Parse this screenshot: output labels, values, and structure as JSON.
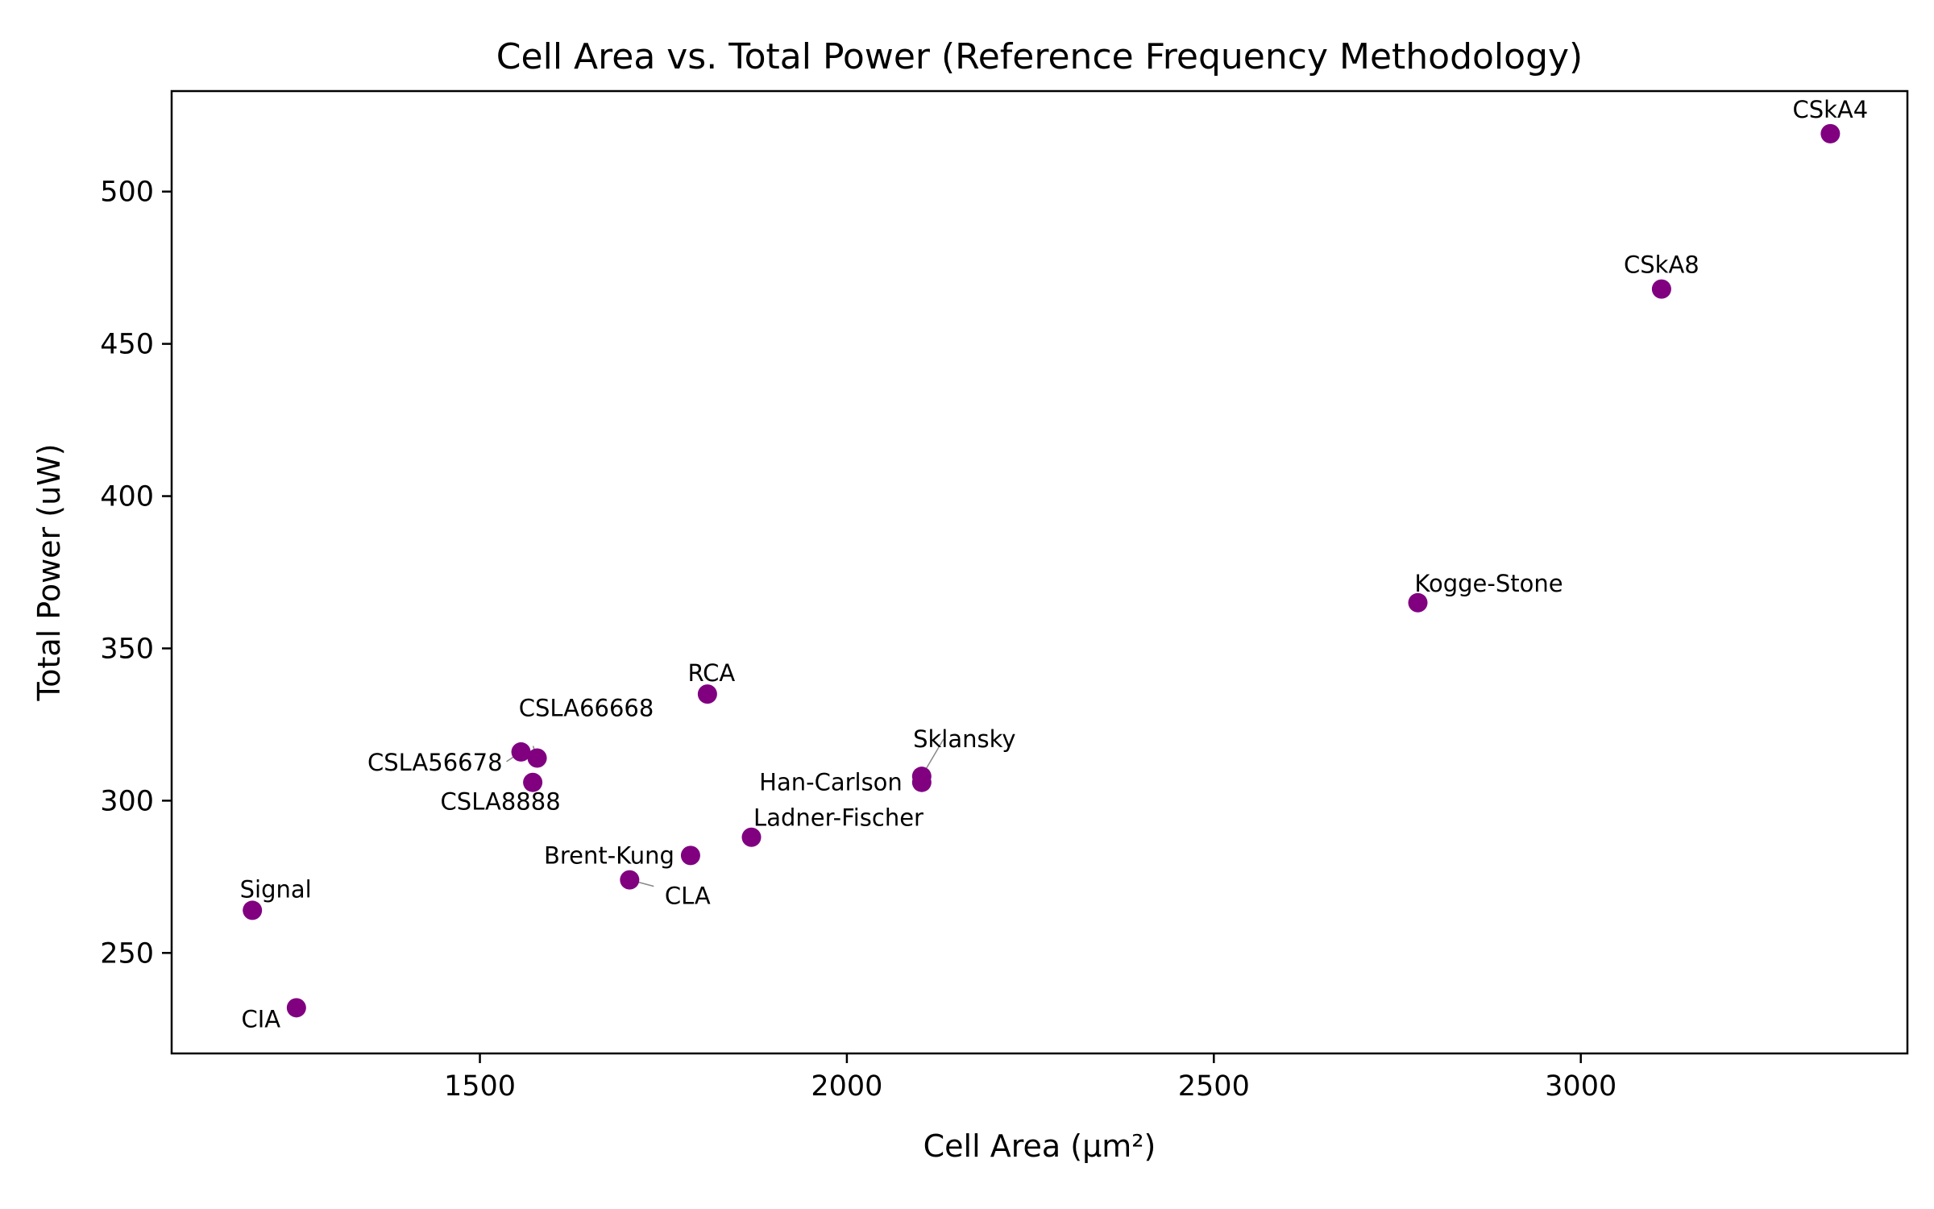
{
  "chart_data": {
    "type": "scatter",
    "title": "Cell Area vs. Total Power (Reference Frequency Methodology)",
    "xlabel": "Cell Area (μm²)",
    "ylabel": "Total Power (uW)",
    "xlim": [
      1080,
      3445
    ],
    "ylim": [
      217,
      533
    ],
    "xticks": [
      1500,
      2000,
      2500,
      3000
    ],
    "yticks": [
      250,
      300,
      350,
      400,
      450,
      500
    ],
    "grid": false,
    "marker_color": "#800080",
    "points": [
      {
        "label": "CSkA4",
        "x": 3340,
        "y": 519
      },
      {
        "label": "CSkA8",
        "x": 3110,
        "y": 468
      },
      {
        "label": "Kogge-Stone",
        "x": 2778,
        "y": 365
      },
      {
        "label": "RCA",
        "x": 1810,
        "y": 335
      },
      {
        "label": "CSLA66668",
        "x": 1578,
        "y": 314
      },
      {
        "label": "CSLA56678",
        "x": 1556,
        "y": 316
      },
      {
        "label": "CSLA8888",
        "x": 1572,
        "y": 306
      },
      {
        "label": "Sklansky",
        "x": 2102,
        "y": 308
      },
      {
        "label": "Han-Carlson",
        "x": 2102,
        "y": 306
      },
      {
        "label": "Ladner-Fischer",
        "x": 1870,
        "y": 288
      },
      {
        "label": "Brent-Kung",
        "x": 1787,
        "y": 282
      },
      {
        "label": "CLA",
        "x": 1704,
        "y": 274
      },
      {
        "label": "Signal",
        "x": 1190,
        "y": 264
      },
      {
        "label": "CIA",
        "x": 1250,
        "y": 232
      }
    ]
  }
}
